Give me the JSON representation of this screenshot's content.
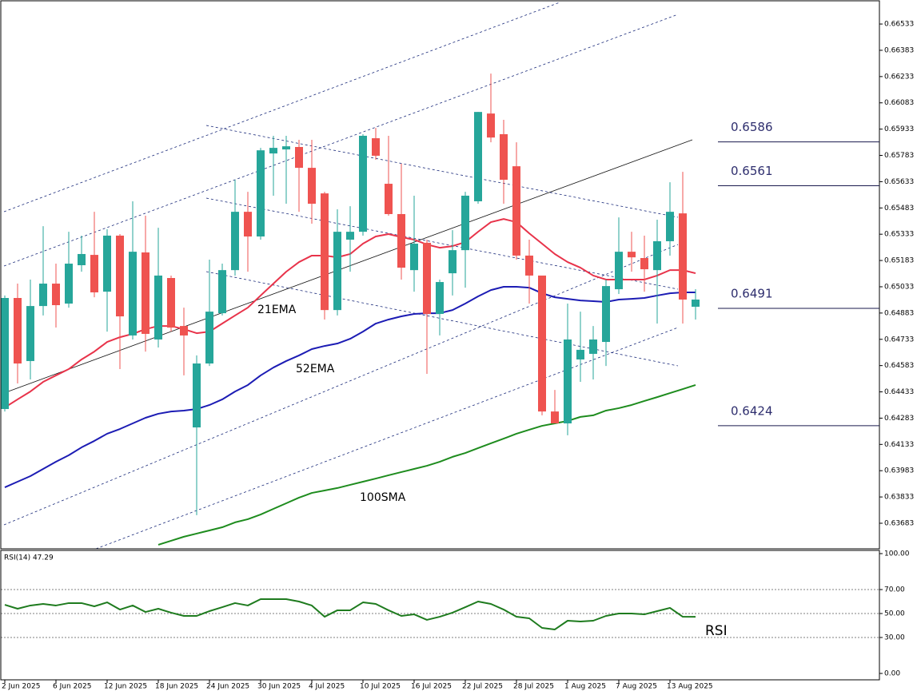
{
  "chart_data": {
    "type": "candlestick",
    "categories": [
      "2 Jun 2025",
      null,
      null,
      null,
      "6 Jun 2025",
      null,
      null,
      null,
      "12 Jun 2025",
      null,
      null,
      null,
      "18 Jun 2025",
      null,
      null,
      null,
      "24 Jun 2025",
      null,
      null,
      null,
      "30 Jun 2025",
      null,
      null,
      null,
      "4 Jul 2025",
      null,
      null,
      null,
      "10 Jul 2025",
      null,
      null,
      null,
      "16 Jul 2025",
      null,
      null,
      null,
      "22 Jul 2025",
      null,
      null,
      null,
      "28 Jul 2025",
      null,
      null,
      null,
      "1 Aug 2025",
      null,
      null,
      null,
      "7 Aug 2025",
      null,
      null,
      null,
      "13 Aug 2025",
      null,
      null
    ],
    "open": [
      0.64335,
      0.64969,
      0.64609,
      0.64923,
      0.65051,
      0.64937,
      0.65156,
      0.65215,
      0.65005,
      0.65325,
      0.64755,
      0.65229,
      0.64732,
      0.65083,
      0.64809,
      0.6423,
      0.64595,
      0.64882,
      0.65128,
      0.65461,
      0.6532,
      0.65794,
      0.65817,
      0.65831,
      0.65712,
      0.65566,
      0.649,
      0.65302,
      0.65347,
      0.65881,
      0.65621,
      0.65448,
      0.65128,
      0.65284,
      0.64878,
      0.6511,
      0.65242,
      0.65521,
      0.66022,
      0.65904,
      0.65721,
      0.65211,
      0.65097,
      0.64321,
      0.64253,
      0.64618,
      0.6465,
      0.64718,
      0.65019,
      0.65233,
      0.65197,
      0.65128,
      0.65293,
      0.65452,
      0.64919
    ],
    "high": [
      0.64983,
      0.65051,
      0.65074,
      0.65379,
      0.65165,
      0.65347,
      0.65325,
      0.65461,
      0.65361,
      0.65334,
      0.65521,
      0.65439,
      0.6537,
      0.65097,
      0.64914,
      0.64641,
      0.65188,
      0.65165,
      0.65644,
      0.65575,
      0.65826,
      0.65895,
      0.65895,
      0.65872,
      0.65872,
      0.65575,
      0.65475,
      0.65493,
      0.65904,
      0.6594,
      0.65895,
      0.65735,
      0.65553,
      0.65302,
      0.65074,
      0.65356,
      0.65575,
      0.66031,
      0.6625,
      0.65986,
      0.65858,
      0.65302,
      0.65097,
      0.64444,
      0.64937,
      0.64891,
      0.64809,
      0.65074,
      0.65429,
      0.65347,
      0.65325,
      0.65416,
      0.6563,
      0.65689,
      0.65019
    ],
    "low": [
      0.64321,
      0.64481,
      0.64504,
      0.64869,
      0.648,
      0.64914,
      0.65119,
      0.64973,
      0.64777,
      0.64563,
      0.64732,
      0.64663,
      0.64686,
      0.64777,
      0.64527,
      0.63729,
      0.64581,
      0.64869,
      0.65097,
      0.65119,
      0.65302,
      0.65553,
      0.65507,
      0.65461,
      0.65393,
      0.64846,
      0.64869,
      0.65119,
      0.65325,
      0.65758,
      0.65439,
      0.65074,
      0.65005,
      0.64536,
      0.64755,
      0.64983,
      0.65028,
      0.65507,
      0.65858,
      0.65507,
      0.65188,
      0.64937,
      0.64299,
      0.64253,
      0.64185,
      0.6449,
      0.64504,
      0.64581,
      0.64992,
      0.65119,
      0.65005,
      0.64823,
      0.65211,
      0.64823,
      0.64846
    ],
    "close": [
      0.64969,
      0.64595,
      0.64923,
      0.65051,
      0.64928,
      0.65165,
      0.6522,
      0.65001,
      0.65325,
      0.64864,
      0.65233,
      0.64764,
      0.65097,
      0.648,
      0.64755,
      0.64595,
      0.64891,
      0.65128,
      0.65461,
      0.6532,
      0.65812,
      0.65826,
      0.65835,
      0.65712,
      0.65507,
      0.649,
      0.65347,
      0.65347,
      0.65895,
      0.65781,
      0.65448,
      0.65142,
      0.65279,
      0.64878,
      0.6506,
      0.65242,
      0.65553,
      0.66031,
      0.65885,
      0.65644,
      0.65211,
      0.65097,
      0.64321,
      0.64253,
      0.64732,
      0.64673,
      0.64732,
      0.65037,
      0.65233,
      0.65201,
      0.65133,
      0.65293,
      0.65461,
      0.6496,
      0.6496
    ],
    "up_color": "#26a69a",
    "down_color": "#ef5350",
    "ylim": [
      0.63537,
      0.66661
    ],
    "yticks": [
      0.66533,
      0.66383,
      0.66233,
      0.66083,
      0.65933,
      0.65783,
      0.65633,
      0.65483,
      0.65333,
      0.65183,
      0.65033,
      0.64883,
      0.64733,
      0.64583,
      0.64433,
      0.64283,
      0.64133,
      0.63983,
      0.63833,
      0.63683
    ],
    "grid": false,
    "series": [
      {
        "name": "21EMA",
        "color": "#e8334a",
        "values": [
          0.64344,
          0.6439,
          0.64435,
          0.6449,
          0.64527,
          0.64563,
          0.64618,
          0.64663,
          0.64718,
          0.64745,
          0.64764,
          0.64791,
          0.64809,
          0.64809,
          0.64791,
          0.64768,
          0.64777,
          0.64823,
          0.64869,
          0.64914,
          0.64983,
          0.65051,
          0.65119,
          0.65174,
          0.65211,
          0.65211,
          0.65201,
          0.6522,
          0.65279,
          0.6532,
          0.65334,
          0.65316,
          0.65302,
          0.65274,
          0.65256,
          0.65265,
          0.65288,
          0.65347,
          0.65402,
          0.6542,
          0.65402,
          0.65338,
          0.65279,
          0.6522,
          0.65174,
          0.65142,
          0.65097,
          0.65074,
          0.65074,
          0.65074,
          0.65074,
          0.65097,
          0.65128,
          0.65128,
          0.6511
        ]
      },
      {
        "name": "52EMA",
        "color": "#1c1cb4",
        "values": [
          0.63888,
          0.6392,
          0.63952,
          0.63993,
          0.64034,
          0.64071,
          0.64116,
          0.64153,
          0.64194,
          0.64221,
          0.64253,
          0.64285,
          0.64308,
          0.64321,
          0.64326,
          0.64335,
          0.64358,
          0.6439,
          0.64435,
          0.64472,
          0.64527,
          0.64572,
          0.64609,
          0.64641,
          0.64677,
          0.64695,
          0.64709,
          0.64736,
          0.64777,
          0.64823,
          0.64846,
          0.64864,
          0.64878,
          0.64882,
          0.64882,
          0.649,
          0.64937,
          0.64978,
          0.65014,
          0.65033,
          0.65033,
          0.65028,
          0.64996,
          0.64973,
          0.64964,
          0.64955,
          0.64951,
          0.64946,
          0.6496,
          0.64964,
          0.64969,
          0.64983,
          0.64996,
          0.65001,
          0.65001
        ]
      },
      {
        "name": "100SMA",
        "color": "#1e8c1e",
        "values": [
          null,
          null,
          null,
          null,
          null,
          null,
          null,
          null,
          null,
          null,
          null,
          null,
          0.6356,
          0.63583,
          0.63606,
          0.63624,
          0.63642,
          0.6366,
          0.63688,
          0.63706,
          0.63733,
          0.63765,
          0.63797,
          0.63829,
          0.63856,
          0.6387,
          0.63884,
          0.63902,
          0.6392,
          0.63938,
          0.63957,
          0.63975,
          0.63993,
          0.64011,
          0.64034,
          0.64062,
          0.64084,
          0.64112,
          0.64139,
          0.64166,
          0.64194,
          0.64217,
          0.64239,
          0.64253,
          0.64267,
          0.6429,
          0.64299,
          0.64326,
          0.6434,
          0.64358,
          0.64381,
          0.64403,
          0.64426,
          0.64449,
          0.64472
        ]
      }
    ],
    "levels": [
      0.6586,
      0.6561,
      0.6491,
      0.6424
    ],
    "rsi": {
      "title": "RSI(14) 47.29",
      "name": "RSI",
      "color": "#1e7b1e",
      "values": [
        57.3,
        54.0,
        56.7,
        58.0,
        56.7,
        58.7,
        58.7,
        56.0,
        59.3,
        53.3,
        56.7,
        51.3,
        54.0,
        50.7,
        48.0,
        48.0,
        52.0,
        55.3,
        58.7,
        56.7,
        62.0,
        62.0,
        62.0,
        60.0,
        56.7,
        47.3,
        52.7,
        52.7,
        59.3,
        58.0,
        52.7,
        48.0,
        49.3,
        44.7,
        47.3,
        50.7,
        55.3,
        60.0,
        58.0,
        53.3,
        47.3,
        46.0,
        38.0,
        36.7,
        44.0,
        43.3,
        44.0,
        48.0,
        50.0,
        50.0,
        49.3,
        52.0,
        54.7,
        47.3,
        47.29
      ],
      "ylim": [
        0,
        100
      ],
      "yticks": [
        {
          "value": 100,
          "label": "100.00"
        },
        {
          "value": 70,
          "label": "70.00"
        },
        {
          "value": 50,
          "label": "50.00"
        },
        {
          "value": 30,
          "label": "30.00"
        },
        {
          "value": 0,
          "label": "0.00"
        }
      ]
    }
  }
}
